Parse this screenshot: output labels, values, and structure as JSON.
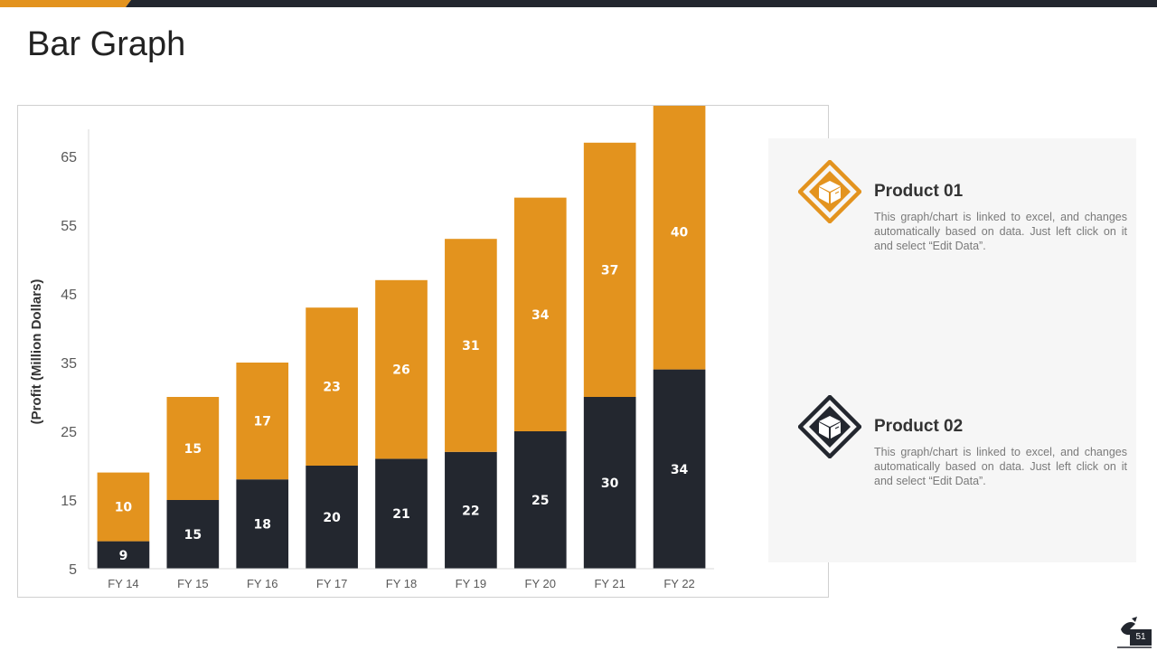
{
  "slide": {
    "title": "Bar Graph",
    "page_number": "51"
  },
  "colors": {
    "accent": "#e3931e",
    "dark": "#23272f",
    "panel_bg": "#f6f6f6"
  },
  "products": [
    {
      "title": "Product 01",
      "description": "This graph/chart is linked to excel, and changes automatically based on data. Just left click on it and select “Edit Data”.",
      "icon": "box-icon",
      "color": "#e3931e"
    },
    {
      "title": "Product 02",
      "description": "This graph/chart is linked to excel, and changes automatically based on data. Just left click on it and select “Edit Data”.",
      "icon": "box-icon",
      "color": "#23272f"
    }
  ],
  "chart_data": {
    "type": "bar",
    "stacked": true,
    "categories": [
      "FY 14",
      "FY 15",
      "FY 16",
      "FY 17",
      "FY 18",
      "FY 19",
      "FY 20",
      "FY 21",
      "FY 22"
    ],
    "series": [
      {
        "name": "Product 02",
        "values": [
          9,
          15,
          18,
          20,
          21,
          22,
          25,
          30,
          34
        ],
        "color": "#23272f"
      },
      {
        "name": "Product 01",
        "values": [
          10,
          15,
          17,
          23,
          26,
          31,
          34,
          37,
          40
        ],
        "color": "#e3931e"
      }
    ],
    "ylabel": "(Profit  (Million Dollars)",
    "xlabel": "",
    "yticks": [
      5,
      15,
      25,
      35,
      45,
      55,
      65
    ],
    "ylim": [
      5,
      70
    ],
    "grid": false,
    "legend": "right panel"
  }
}
